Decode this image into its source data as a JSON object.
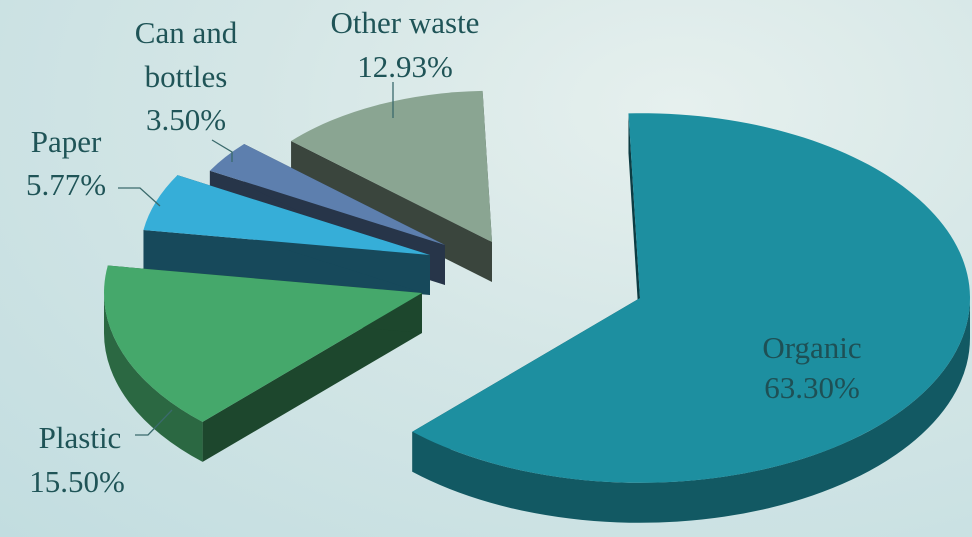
{
  "chart_data": {
    "type": "pie",
    "style": "3d-exploded",
    "title": "",
    "slices": [
      {
        "label": "Organic",
        "value": 63.3,
        "display": "63.30%",
        "color": "#1d8fa0",
        "label_position": "inside"
      },
      {
        "label": "Plastic",
        "value": 15.5,
        "display": "15.50%",
        "color": "#45a86b",
        "label_position": "outside"
      },
      {
        "label": "Paper",
        "value": 5.77,
        "display": "5.77%",
        "color": "#36aed8",
        "label_position": "outside"
      },
      {
        "label": "Can and bottles",
        "label_lines": [
          "Can and",
          "bottles"
        ],
        "value": 3.5,
        "display": "3.50%",
        "color": "#5d7fae",
        "label_position": "outside"
      },
      {
        "label": "Other waste",
        "value": 12.93,
        "display": "12.93%",
        "color": "#8aa592",
        "label_position": "outside"
      }
    ],
    "legend": "none"
  }
}
